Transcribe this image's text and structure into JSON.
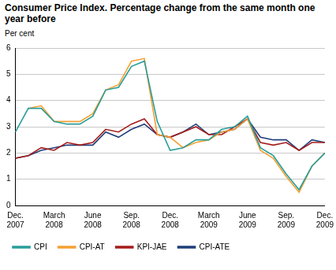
{
  "chart_data": {
    "type": "line",
    "title": "Consumer Price Index. Percentage change from the same month one year before",
    "y_label": "Per cent",
    "categories": [
      "Dec. 2007",
      null,
      null,
      "March 2008",
      null,
      null,
      "June 2008",
      null,
      null,
      "Sep. 2008",
      null,
      null,
      "Dec. 2008",
      null,
      null,
      "March 2009",
      null,
      null,
      "June 2009",
      null,
      null,
      "Sep. 2009",
      null,
      null,
      "Dec. 2009"
    ],
    "series": [
      {
        "name": "CPI",
        "color": "#2a9d9a",
        "values": [
          2.8,
          3.7,
          3.7,
          3.2,
          3.1,
          3.1,
          3.4,
          4.4,
          4.5,
          5.3,
          5.5,
          3.2,
          2.1,
          2.2,
          2.5,
          2.5,
          2.9,
          3.0,
          3.4,
          2.2,
          1.9,
          1.2,
          0.6,
          1.5,
          2.0
        ]
      },
      {
        "name": "CPI-AT",
        "color": "#f5a033",
        "values": [
          null,
          3.7,
          3.8,
          3.2,
          3.2,
          3.2,
          3.5,
          4.4,
          4.6,
          5.5,
          5.6,
          2.7,
          2.6,
          2.2,
          2.4,
          2.5,
          2.8,
          2.9,
          3.3,
          2.1,
          1.8,
          1.1,
          0.5,
          1.5,
          2.0
        ]
      },
      {
        "name": "KPI-JAE",
        "color": "#a51d1d",
        "values": [
          1.8,
          1.9,
          2.2,
          2.1,
          2.4,
          2.3,
          2.4,
          2.9,
          2.8,
          3.1,
          3.3,
          2.7,
          2.6,
          2.8,
          3.0,
          2.7,
          2.7,
          3.0,
          3.3,
          2.4,
          2.3,
          2.4,
          2.1,
          2.4,
          2.4
        ]
      },
      {
        "name": "CPI-ATE",
        "color": "#1f3f7a",
        "values": [
          1.8,
          1.9,
          2.1,
          2.2,
          2.3,
          2.3,
          2.3,
          2.8,
          2.6,
          2.9,
          3.1,
          2.7,
          2.6,
          2.8,
          3.1,
          2.7,
          2.8,
          2.9,
          3.3,
          2.6,
          2.5,
          2.5,
          2.1,
          2.5,
          2.4
        ]
      }
    ],
    "ylim": [
      0,
      6
    ],
    "yticks": [
      0,
      1,
      2,
      3,
      4,
      5,
      6
    ],
    "grid": true,
    "legend": "bottom"
  }
}
